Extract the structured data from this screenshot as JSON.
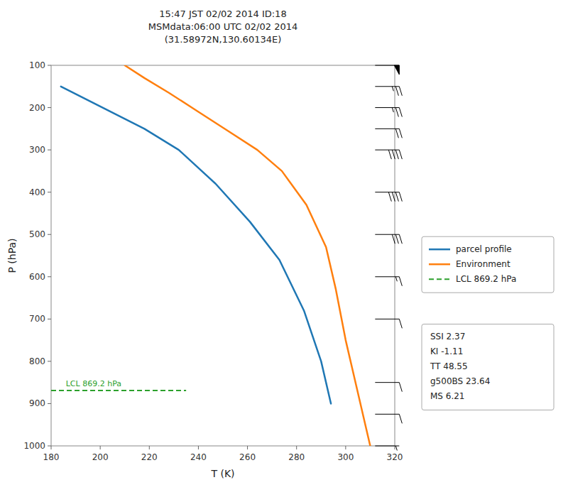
{
  "chart_data": {
    "type": "line",
    "title": "15:47 JST 02/02 2014  ID:18\nMSMdata:06:00 UTC 02/02 2014\n(31.58972N,130.60134E)",
    "x_label": "T (K)",
    "y_label": "P (hPa)",
    "xlim": [
      180,
      320
    ],
    "xticks": [
      180,
      200,
      220,
      240,
      260,
      280,
      300,
      320
    ],
    "ylim": [
      1000,
      100
    ],
    "yticks": [
      100,
      200,
      300,
      400,
      500,
      600,
      700,
      800,
      900,
      1000
    ],
    "grid": false,
    "legend": "right",
    "series": [
      {
        "name": "parcel profile",
        "color": "#1f77b4",
        "line_style": "solid",
        "x": [
          184,
          218,
          232,
          247,
          261,
          273,
          283,
          290,
          294
        ],
        "values": [
          150,
          250,
          300,
          380,
          470,
          560,
          680,
          800,
          900
        ]
      },
      {
        "name": "Environment",
        "color": "#ff7f0e",
        "line_style": "solid",
        "x": [
          210,
          218,
          228,
          240,
          252,
          264,
          274,
          284,
          292,
          296,
          300,
          310
        ],
        "values": [
          100,
          130,
          165,
          210,
          255,
          300,
          350,
          430,
          530,
          630,
          750,
          1000
        ]
      },
      {
        "name": "LCL 869.2 hPa",
        "color": "#2ca02c",
        "line_style": "dashed",
        "x": [
          180,
          235
        ],
        "values": [
          869.2,
          869.2
        ]
      }
    ],
    "annotations": [
      {
        "text": "LCL 869.2 hPa",
        "x": 186,
        "y": 869.2,
        "color": "#2ca02c"
      },
      {
        "text": "SSI 2.37"
      },
      {
        "text": "KI -1.11"
      },
      {
        "text": "TT 48.55"
      },
      {
        "text": "g500BS 23.64"
      },
      {
        "text": "MS 6.21"
      }
    ],
    "barbs": {
      "x": 312,
      "pressures": [
        100,
        150,
        200,
        250,
        300,
        400,
        500,
        600,
        700,
        850,
        925,
        1000
      ],
      "u": [
        -50,
        -25,
        -25,
        -20,
        -40,
        -40,
        -30,
        -15,
        -10,
        -10,
        -10,
        -5
      ],
      "v": [
        0,
        0,
        0,
        0,
        0,
        0,
        0,
        0,
        0,
        0,
        0,
        0
      ]
    }
  }
}
